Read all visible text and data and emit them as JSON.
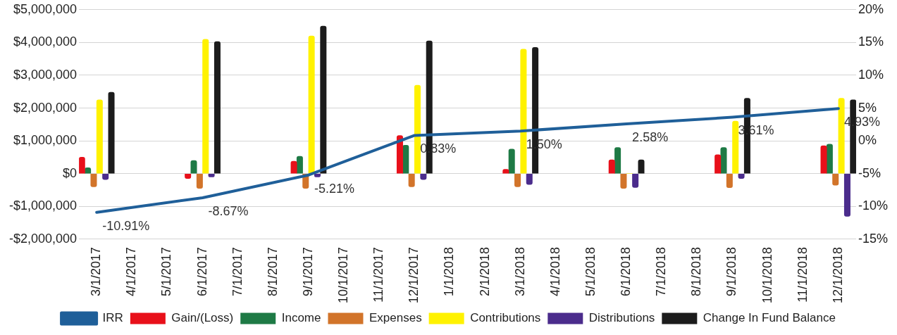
{
  "chart_data": {
    "type": "bar",
    "categories": [
      "3/1/2017",
      "4/1/2017",
      "5/1/2017",
      "6/1/2017",
      "7/1/2017",
      "8/1/2017",
      "9/1/2017",
      "10/1/2017",
      "11/1/2017",
      "12/1/2017",
      "1/1/2018",
      "2/1/2018",
      "3/1/2018",
      "4/1/2018",
      "5/1/2018",
      "6/1/2018",
      "7/1/2018",
      "8/1/2018",
      "9/1/2018",
      "10/1/2018",
      "11/1/2018",
      "12/1/2018"
    ],
    "series": [
      {
        "name": "Gain/(Loss)",
        "color": "#e8101a",
        "values": [
          500000,
          null,
          null,
          -150000,
          null,
          null,
          380000,
          null,
          null,
          1160000,
          null,
          null,
          130000,
          null,
          null,
          420000,
          null,
          null,
          580000,
          null,
          null,
          850000
        ]
      },
      {
        "name": "Income",
        "color": "#1e7a45",
        "values": [
          180000,
          null,
          null,
          400000,
          null,
          null,
          530000,
          null,
          null,
          870000,
          null,
          null,
          750000,
          null,
          null,
          800000,
          null,
          null,
          800000,
          null,
          null,
          900000
        ]
      },
      {
        "name": "Expenses",
        "color": "#d2742a",
        "values": [
          -400000,
          null,
          null,
          -450000,
          null,
          null,
          -450000,
          null,
          null,
          -400000,
          null,
          null,
          -400000,
          null,
          null,
          -450000,
          null,
          null,
          -430000,
          null,
          null,
          -350000
        ]
      },
      {
        "name": "Contributions",
        "color": "#fff200",
        "values": [
          2250000,
          null,
          null,
          4100000,
          null,
          null,
          4200000,
          null,
          null,
          2700000,
          null,
          null,
          3800000,
          null,
          null,
          0,
          null,
          null,
          1600000,
          null,
          null,
          2300000
        ]
      },
      {
        "name": "Distributions",
        "color": "#4b2c8c",
        "values": [
          -180000,
          null,
          null,
          -100000,
          null,
          null,
          -100000,
          null,
          null,
          -180000,
          null,
          null,
          -330000,
          null,
          null,
          -420000,
          null,
          null,
          -150000,
          null,
          null,
          -1300000
        ]
      },
      {
        "name": "Change In Fund Balance",
        "color": "#1c1c1c",
        "values": [
          2480000,
          null,
          null,
          4030000,
          null,
          null,
          4500000,
          null,
          null,
          4050000,
          null,
          null,
          3850000,
          null,
          null,
          420000,
          null,
          null,
          2300000,
          null,
          null,
          2250000
        ]
      },
      {
        "name": "IRR",
        "type": "line",
        "axis": "y2",
        "color": "#1f5f99",
        "values": [
          -10.91,
          null,
          null,
          -8.67,
          null,
          null,
          -5.21,
          null,
          null,
          0.83,
          null,
          null,
          1.5,
          null,
          null,
          2.58,
          null,
          null,
          3.61,
          null,
          null,
          4.93
        ],
        "value_labels": [
          "-10.91%",
          null,
          null,
          "-8.67%",
          null,
          null,
          "-5.21%",
          null,
          null,
          "0.83%",
          null,
          null,
          "1.50%",
          null,
          null,
          "2.58%",
          null,
          null,
          "3.61%",
          null,
          null,
          "4.93%"
        ]
      }
    ],
    "ylim": [
      -2000000,
      5000000
    ],
    "yticks": [
      {
        "value": -2000000,
        "label": "-$2,000,000"
      },
      {
        "value": -1000000,
        "label": "-$1,000,000"
      },
      {
        "value": 0,
        "label": "$0"
      },
      {
        "value": 1000000,
        "label": "$1,000,000"
      },
      {
        "value": 2000000,
        "label": "$2,000,000"
      },
      {
        "value": 3000000,
        "label": "$3,000,000"
      },
      {
        "value": 4000000,
        "label": "$4,000,000"
      },
      {
        "value": 5000000,
        "label": "$5,000,000"
      }
    ],
    "y2lim": [
      -15,
      20
    ],
    "y2ticks": [
      {
        "value": -15,
        "label": "-15%"
      },
      {
        "value": -10,
        "label": "-10%"
      },
      {
        "value": -5,
        "label": "-5%"
      },
      {
        "value": 0,
        "label": "0%"
      },
      {
        "value": 5,
        "label": "5%"
      },
      {
        "value": 10,
        "label": "10%"
      },
      {
        "value": 15,
        "label": "15%"
      },
      {
        "value": 20,
        "label": "20%"
      }
    ],
    "grid": "y",
    "legend": "bottom",
    "marker": "none"
  }
}
